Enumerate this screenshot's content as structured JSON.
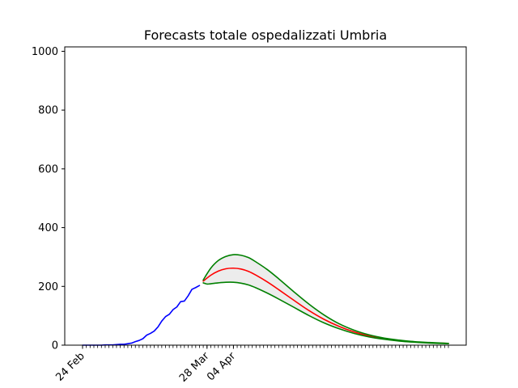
{
  "chart_data": {
    "type": "line",
    "title": "Forecasts totale ospedalizzati Umbria",
    "xlabel": "",
    "ylabel": "",
    "x_start_date": "2020-02-24",
    "x_end_date": "2020-05-31",
    "ylim": [
      0,
      1015
    ],
    "yticks": [
      0,
      200,
      400,
      600,
      800,
      1000
    ],
    "xtick_labels": [
      {
        "date": "2020-02-24",
        "label": "24 Feb"
      },
      {
        "date": "2020-03-28",
        "label": "28 Mar"
      },
      {
        "date": "2020-04-04",
        "label": "04 Apr"
      }
    ],
    "grid": false,
    "legend": "none",
    "series": [
      {
        "role": "observed",
        "color": "#0000ff",
        "points": [
          [
            "2020-02-24",
            0
          ],
          [
            "2020-02-25",
            0
          ],
          [
            "2020-02-26",
            0
          ],
          [
            "2020-02-27",
            0
          ],
          [
            "2020-02-28",
            0
          ],
          [
            "2020-02-29",
            0
          ],
          [
            "2020-03-01",
            1
          ],
          [
            "2020-03-02",
            1
          ],
          [
            "2020-03-03",
            1
          ],
          [
            "2020-03-04",
            2
          ],
          [
            "2020-03-05",
            3
          ],
          [
            "2020-03-06",
            3
          ],
          [
            "2020-03-07",
            5
          ],
          [
            "2020-03-08",
            7
          ],
          [
            "2020-03-09",
            12
          ],
          [
            "2020-03-10",
            16
          ],
          [
            "2020-03-11",
            22
          ],
          [
            "2020-03-12",
            34
          ],
          [
            "2020-03-13",
            40
          ],
          [
            "2020-03-14",
            48
          ],
          [
            "2020-03-15",
            62
          ],
          [
            "2020-03-16",
            82
          ],
          [
            "2020-03-17",
            97
          ],
          [
            "2020-03-18",
            105
          ],
          [
            "2020-03-19",
            121
          ],
          [
            "2020-03-20",
            130
          ],
          [
            "2020-03-21",
            148
          ],
          [
            "2020-03-22",
            150
          ],
          [
            "2020-03-23",
            168
          ],
          [
            "2020-03-24",
            190
          ],
          [
            "2020-03-25",
            196
          ],
          [
            "2020-03-26",
            203
          ]
        ]
      },
      {
        "role": "forecast",
        "color": "#ff0000",
        "points": [
          [
            "2020-03-27",
            218
          ],
          [
            "2020-03-29",
            238
          ],
          [
            "2020-03-31",
            252
          ],
          [
            "2020-04-02",
            260
          ],
          [
            "2020-04-04",
            262
          ],
          [
            "2020-04-06",
            259
          ],
          [
            "2020-04-08",
            251
          ],
          [
            "2020-04-10",
            238
          ],
          [
            "2020-04-13",
            215
          ],
          [
            "2020-04-16",
            189
          ],
          [
            "2020-04-20",
            153
          ],
          [
            "2020-04-24",
            118
          ],
          [
            "2020-04-28",
            88
          ],
          [
            "2020-05-02",
            64
          ],
          [
            "2020-05-06",
            45
          ],
          [
            "2020-05-10",
            31
          ],
          [
            "2020-05-14",
            22
          ],
          [
            "2020-05-18",
            15
          ],
          [
            "2020-05-22",
            11
          ],
          [
            "2020-05-26",
            8
          ],
          [
            "2020-05-31",
            6
          ]
        ]
      },
      {
        "role": "upper_bound",
        "color": "#008000",
        "points": [
          [
            "2020-03-27",
            222
          ],
          [
            "2020-03-29",
            262
          ],
          [
            "2020-03-31",
            288
          ],
          [
            "2020-04-02",
            302
          ],
          [
            "2020-04-04",
            308
          ],
          [
            "2020-04-06",
            306
          ],
          [
            "2020-04-08",
            298
          ],
          [
            "2020-04-10",
            283
          ],
          [
            "2020-04-13",
            257
          ],
          [
            "2020-04-16",
            226
          ],
          [
            "2020-04-20",
            182
          ],
          [
            "2020-04-24",
            140
          ],
          [
            "2020-04-28",
            103
          ],
          [
            "2020-05-02",
            73
          ],
          [
            "2020-05-06",
            51
          ],
          [
            "2020-05-10",
            35
          ],
          [
            "2020-05-14",
            24
          ],
          [
            "2020-05-18",
            17
          ],
          [
            "2020-05-22",
            12
          ],
          [
            "2020-05-26",
            9
          ],
          [
            "2020-05-31",
            6
          ]
        ]
      },
      {
        "role": "lower_bound",
        "color": "#008000",
        "points": [
          [
            "2020-03-27",
            212
          ],
          [
            "2020-03-28",
            208
          ],
          [
            "2020-03-29",
            209
          ],
          [
            "2020-03-31",
            212
          ],
          [
            "2020-04-02",
            214
          ],
          [
            "2020-04-04",
            214
          ],
          [
            "2020-04-06",
            211
          ],
          [
            "2020-04-08",
            205
          ],
          [
            "2020-04-10",
            195
          ],
          [
            "2020-04-13",
            177
          ],
          [
            "2020-04-16",
            157
          ],
          [
            "2020-04-20",
            129
          ],
          [
            "2020-04-24",
            101
          ],
          [
            "2020-04-28",
            76
          ],
          [
            "2020-05-02",
            56
          ],
          [
            "2020-05-06",
            40
          ],
          [
            "2020-05-10",
            28
          ],
          [
            "2020-05-14",
            20
          ],
          [
            "2020-05-18",
            14
          ],
          [
            "2020-05-22",
            10
          ],
          [
            "2020-05-26",
            7
          ],
          [
            "2020-05-31",
            5
          ]
        ]
      }
    ],
    "band": {
      "between": [
        "upper_bound",
        "lower_bound"
      ],
      "color": "#ececec"
    }
  }
}
